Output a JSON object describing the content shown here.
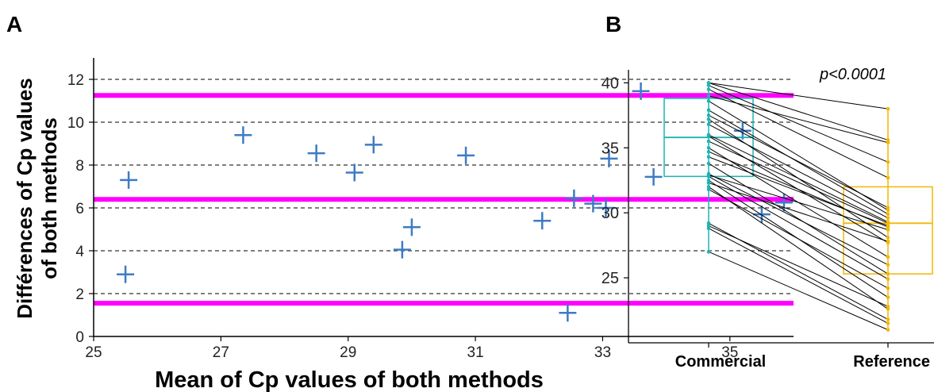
{
  "panel_a_letter": "A",
  "panel_b_letter": "B",
  "chart_data": [
    {
      "type": "scatter",
      "panel": "A",
      "xlabel": "Mean of Cp values of both methods",
      "ylabel_line1": "Différences of Cp values",
      "ylabel_line2": "of both methods",
      "xlim": [
        25,
        36
      ],
      "ylim": [
        0,
        13
      ],
      "x_ticks": [
        "25",
        "27",
        "29",
        "31",
        "33",
        "35"
      ],
      "y_ticks": [
        "0",
        "2",
        "4",
        "6",
        "8",
        "10",
        "12"
      ],
      "grid": "horizontal dashed",
      "marker_color": "#3d7bc4",
      "points": [
        {
          "x": 25.55,
          "y": 7.3
        },
        {
          "x": 25.5,
          "y": 2.9
        },
        {
          "x": 27.35,
          "y": 9.4
        },
        {
          "x": 28.5,
          "y": 8.55
        },
        {
          "x": 29.1,
          "y": 7.65
        },
        {
          "x": 29.4,
          "y": 8.95
        },
        {
          "x": 29.85,
          "y": 4.05
        },
        {
          "x": 30.0,
          "y": 5.1
        },
        {
          "x": 30.85,
          "y": 8.45
        },
        {
          "x": 32.05,
          "y": 5.4
        },
        {
          "x": 32.55,
          "y": 6.45
        },
        {
          "x": 32.45,
          "y": 1.1
        },
        {
          "x": 32.85,
          "y": 6.2
        },
        {
          "x": 33.05,
          "y": 6.0
        },
        {
          "x": 33.1,
          "y": 8.3
        },
        {
          "x": 33.6,
          "y": 11.45
        },
        {
          "x": 33.8,
          "y": 7.45
        },
        {
          "x": 35.2,
          "y": 9.6
        },
        {
          "x": 35.5,
          "y": 5.7
        },
        {
          "x": 35.85,
          "y": 6.25
        }
      ],
      "reference_lines": [
        {
          "y": 11.25,
          "color": "#ff00ff"
        },
        {
          "y": 6.4,
          "color": "#ff00ff"
        },
        {
          "y": 1.55,
          "color": "#ff00ff"
        }
      ]
    },
    {
      "type": "box",
      "panel": "B",
      "categories": [
        "Commercial",
        "Reference"
      ],
      "ylim": [
        20,
        41
      ],
      "y_ticks": [
        "25",
        "30",
        "35",
        "40"
      ],
      "annotation": "p<0.0001",
      "colors": {
        "Commercial": "#1fb3b3",
        "Reference": "#f2b705",
        "lines": "#000000"
      },
      "boxes": [
        {
          "category": "Commercial",
          "q1": 32.8,
          "median": 35.8,
          "q3": 38.8,
          "min": 27.0,
          "max": 40.0
        },
        {
          "category": "Reference",
          "q1": 25.3,
          "median": 29.2,
          "q3": 32.0,
          "min": 21.0,
          "max": 38.0
        }
      ],
      "pairs": [
        [
          40.0,
          38.0
        ],
        [
          40.0,
          35.6
        ],
        [
          39.8,
          33.9
        ],
        [
          39.5,
          32.7
        ],
        [
          39.0,
          35.4
        ],
        [
          38.6,
          30.2
        ],
        [
          37.9,
          29.9
        ],
        [
          37.5,
          30.4
        ],
        [
          37.2,
          28.1
        ],
        [
          36.8,
          29.6
        ],
        [
          36.0,
          29.3
        ],
        [
          35.9,
          27.7
        ],
        [
          35.5,
          29.2
        ],
        [
          35.0,
          26.6
        ],
        [
          34.7,
          28.9
        ],
        [
          34.3,
          29.0
        ],
        [
          33.8,
          25.3
        ],
        [
          33.0,
          26.0
        ],
        [
          32.9,
          28.7
        ],
        [
          32.8,
          24.9
        ],
        [
          32.5,
          23.5
        ],
        [
          32.3,
          27.8
        ],
        [
          32.0,
          22.6
        ],
        [
          31.8,
          24.2
        ],
        [
          29.2,
          21.8
        ],
        [
          29.0,
          22.8
        ],
        [
          28.8,
          21.5
        ],
        [
          27.0,
          21.0
        ]
      ]
    }
  ]
}
